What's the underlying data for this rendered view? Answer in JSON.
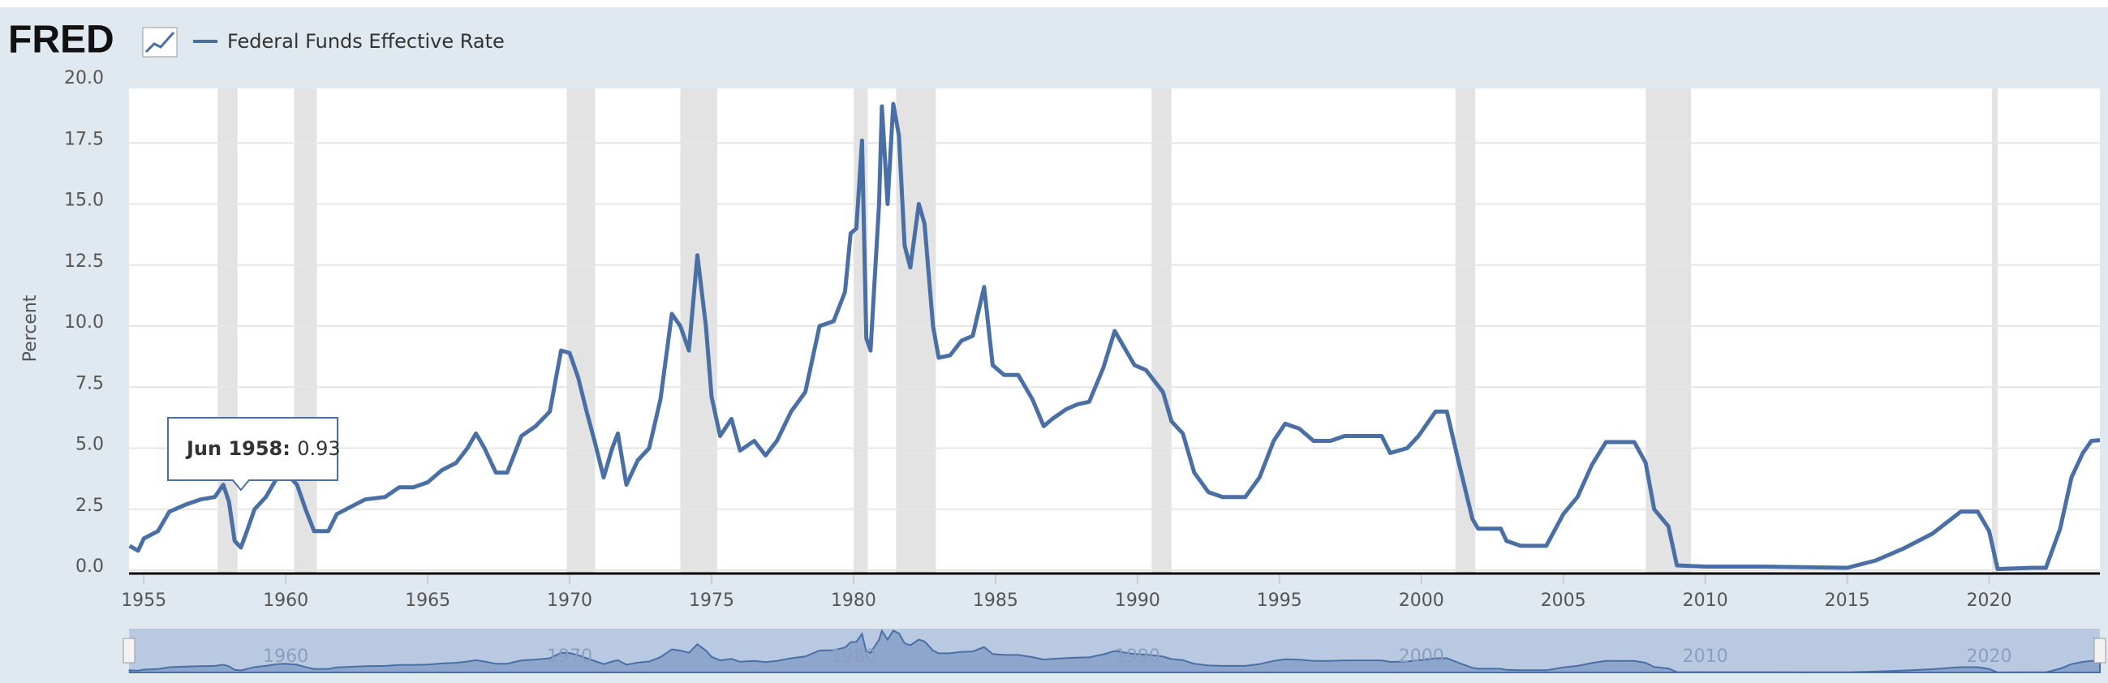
{
  "logo": "FRED",
  "chart_data": {
    "type": "line",
    "y_label": "Percent",
    "series": [
      {
        "name": "Federal Funds Effective Rate",
        "color": "#4a6fa5",
        "x": [
          1954.5,
          1954.8,
          1955.0,
          1955.5,
          1955.9,
          1956.5,
          1957.0,
          1957.5,
          1957.8,
          1958.0,
          1958.2,
          1958.42,
          1958.6,
          1958.9,
          1959.3,
          1959.7,
          1960.0,
          1960.4,
          1960.7,
          1961.0,
          1961.5,
          1961.8,
          1962.3,
          1962.8,
          1963.5,
          1964.0,
          1964.5,
          1965.0,
          1965.5,
          1966.0,
          1966.4,
          1966.7,
          1967.0,
          1967.4,
          1967.8,
          1968.3,
          1968.8,
          1969.3,
          1969.7,
          1970.0,
          1970.3,
          1970.6,
          1970.9,
          1971.2,
          1971.5,
          1971.7,
          1972.0,
          1972.4,
          1972.8,
          1973.2,
          1973.6,
          1973.9,
          1974.2,
          1974.5,
          1974.8,
          1975.0,
          1975.3,
          1975.7,
          1976.0,
          1976.5,
          1976.9,
          1977.3,
          1977.8,
          1978.3,
          1978.8,
          1979.3,
          1979.7,
          1979.9,
          1980.1,
          1980.3,
          1980.45,
          1980.6,
          1980.9,
          1981.0,
          1981.2,
          1981.4,
          1981.6,
          1981.8,
          1982.0,
          1982.3,
          1982.5,
          1982.8,
          1983.0,
          1983.4,
          1983.8,
          1984.2,
          1984.6,
          1984.9,
          1985.3,
          1985.8,
          1986.3,
          1986.7,
          1987.0,
          1987.5,
          1987.9,
          1988.3,
          1988.8,
          1989.2,
          1989.5,
          1989.9,
          1990.3,
          1990.9,
          1991.2,
          1991.6,
          1992.0,
          1992.5,
          1993.0,
          1993.8,
          1994.3,
          1994.8,
          1995.2,
          1995.7,
          1996.2,
          1996.8,
          1997.3,
          1998.2,
          1998.6,
          1998.9,
          1999.5,
          1999.9,
          2000.5,
          2000.9,
          2001.3,
          2001.8,
          2002.0,
          2002.8,
          2003.0,
          2003.5,
          2004.4,
          2005.0,
          2005.5,
          2006.0,
          2006.5,
          2007.5,
          2007.9,
          2008.2,
          2008.7,
          2009.0,
          2010.0,
          2012.0,
          2015.0,
          2016.0,
          2017.0,
          2018.0,
          2019.0,
          2019.6,
          2020.0,
          2020.3,
          2021.5,
          2022.0,
          2022.5,
          2022.9,
          2023.3,
          2023.6,
          2023.9
        ],
        "values": [
          1.0,
          0.8,
          1.3,
          1.6,
          2.4,
          2.7,
          2.9,
          3.0,
          3.5,
          2.8,
          1.2,
          0.93,
          1.5,
          2.5,
          3.0,
          3.8,
          4.0,
          3.5,
          2.5,
          1.6,
          1.6,
          2.3,
          2.6,
          2.9,
          3.0,
          3.4,
          3.4,
          3.6,
          4.1,
          4.4,
          5.0,
          5.6,
          5.0,
          4.0,
          4.0,
          5.5,
          5.9,
          6.5,
          9.0,
          8.9,
          7.9,
          6.5,
          5.2,
          3.8,
          5.0,
          5.6,
          3.5,
          4.5,
          5.0,
          7.0,
          10.5,
          10.0,
          9.0,
          12.9,
          10.0,
          7.1,
          5.5,
          6.2,
          4.9,
          5.3,
          4.7,
          5.3,
          6.5,
          7.3,
          10.0,
          10.2,
          11.4,
          13.8,
          14.0,
          17.6,
          9.5,
          9.0,
          15.0,
          19.0,
          15.0,
          19.1,
          17.8,
          13.3,
          12.4,
          15.0,
          14.2,
          10.0,
          8.7,
          8.8,
          9.4,
          9.6,
          11.6,
          8.4,
          8.0,
          8.0,
          7.0,
          5.9,
          6.2,
          6.6,
          6.8,
          6.9,
          8.3,
          9.8,
          9.2,
          8.4,
          8.2,
          7.3,
          6.1,
          5.6,
          4.0,
          3.2,
          3.0,
          3.0,
          3.8,
          5.3,
          6.0,
          5.8,
          5.3,
          5.3,
          5.5,
          5.5,
          5.5,
          4.8,
          5.0,
          5.5,
          6.5,
          6.5,
          4.5,
          2.1,
          1.7,
          1.7,
          1.2,
          1.0,
          1.0,
          2.3,
          3.0,
          4.3,
          5.25,
          5.25,
          4.4,
          2.5,
          1.8,
          0.2,
          0.15,
          0.15,
          0.1,
          0.4,
          0.9,
          1.5,
          2.4,
          2.4,
          1.6,
          0.05,
          0.1,
          0.1,
          1.7,
          3.8,
          4.8,
          5.3,
          5.33
        ]
      }
    ],
    "recessions": [
      [
        1957.6,
        1958.3
      ],
      [
        1960.3,
        1961.1
      ],
      [
        1969.9,
        1970.9
      ],
      [
        1973.9,
        1975.2
      ],
      [
        1980.0,
        1980.5
      ],
      [
        1981.5,
        1982.9
      ],
      [
        1990.5,
        1991.2
      ],
      [
        2001.2,
        2001.9
      ],
      [
        2007.9,
        2009.5
      ],
      [
        2020.1,
        2020.3
      ]
    ],
    "xlim": [
      1954.48,
      2023.9
    ],
    "xticks": [
      1955,
      1960,
      1965,
      1970,
      1975,
      1980,
      1985,
      1990,
      1995,
      2000,
      2005,
      2010,
      2015,
      2020
    ],
    "ylim": [
      0,
      20
    ],
    "yticks": [
      {
        "value": 0,
        "label": "0.0"
      },
      2.5,
      {
        "value": 5,
        "label": "5.0"
      },
      7.5,
      {
        "value": 10,
        "label": "10.0"
      },
      12.5,
      {
        "value": 15,
        "label": "15.0"
      },
      17.5,
      {
        "value": 20,
        "label": "20.0"
      }
    ],
    "grid": true,
    "navigator_xticks": [
      1960,
      1970,
      1980,
      1990,
      2000,
      2010,
      2020
    ],
    "tooltip": {
      "label": "Jun 1958",
      "value": 0.93
    }
  }
}
